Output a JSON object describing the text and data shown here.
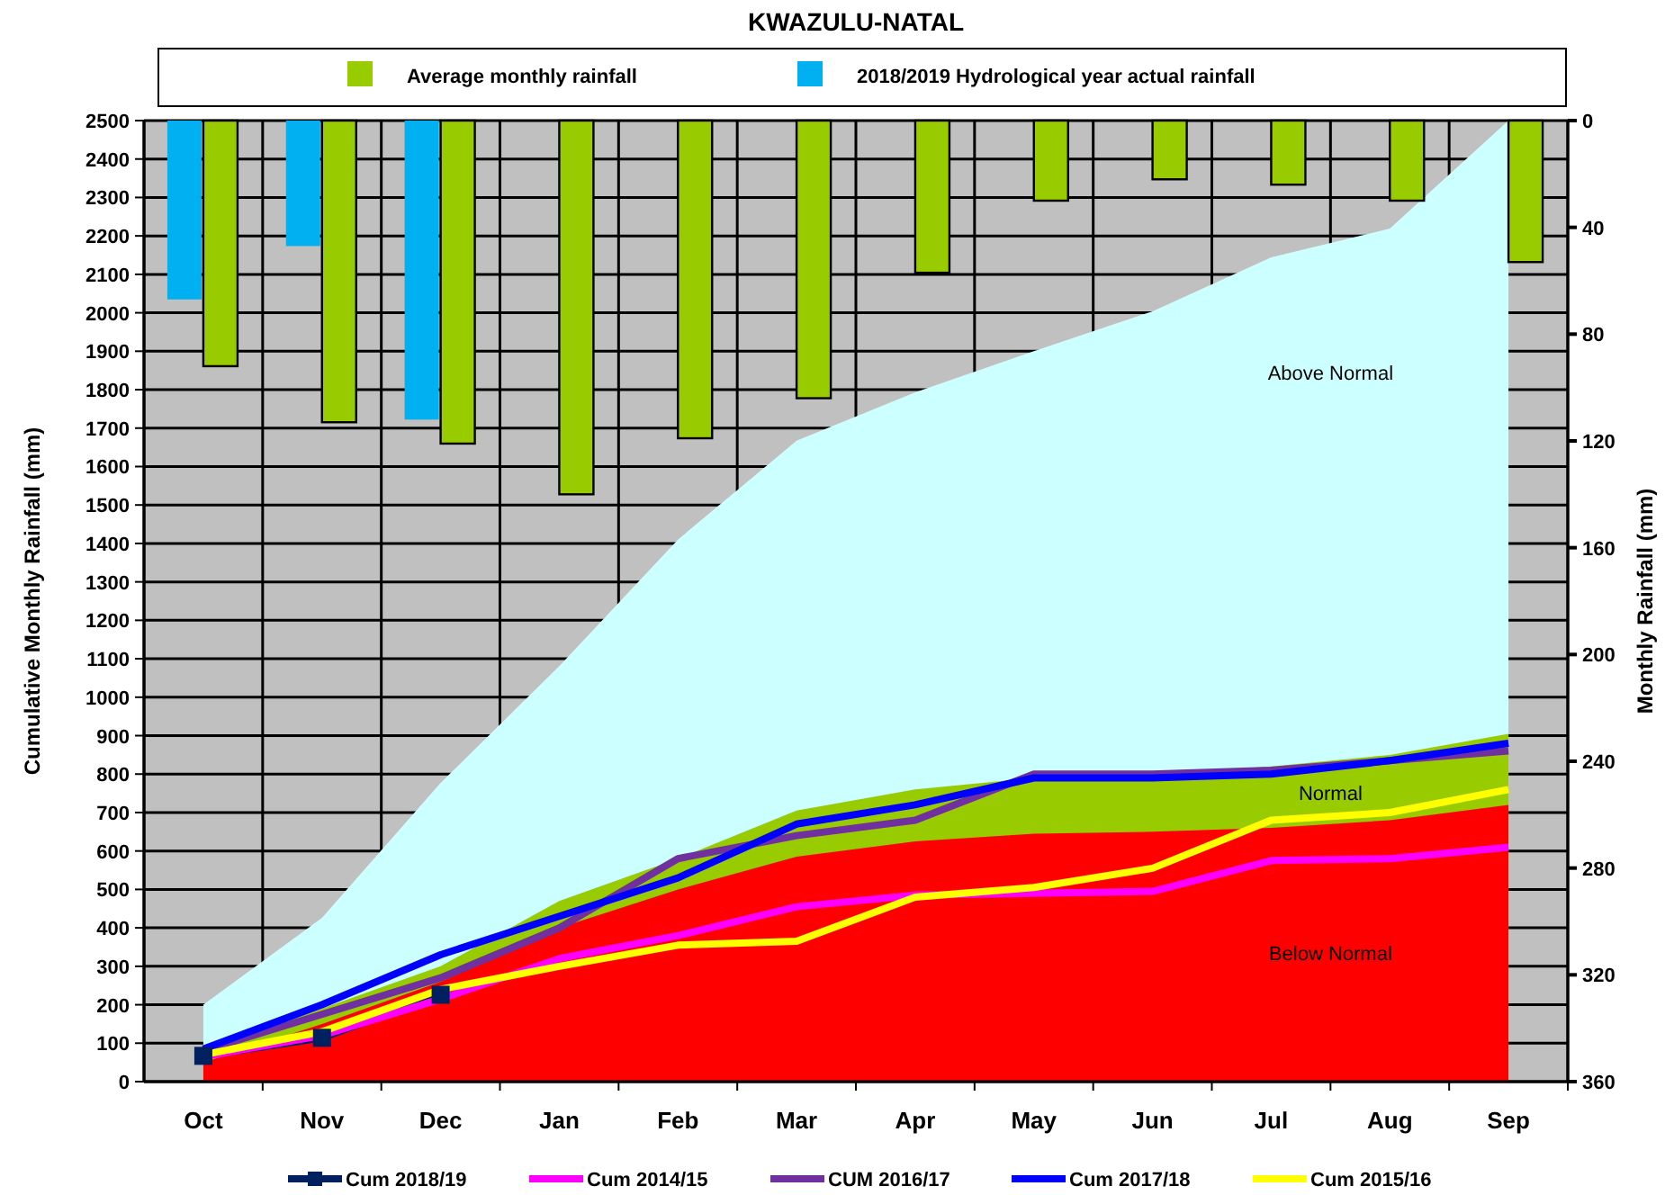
{
  "chart_data": {
    "type": "area",
    "title": "KWAZULU-NATAL",
    "ylabel": "Cumulative Monthly Rainfall (mm)",
    "y2label": "Monthly Rainfall (mm)",
    "categories": [
      "Oct",
      "Nov",
      "Dec",
      "Jan",
      "Feb",
      "Mar",
      "Apr",
      "May",
      "Jun",
      "Jul",
      "Aug",
      "Sep"
    ],
    "grid": true,
    "legend": "bottom",
    "ylim": [
      0,
      2500
    ],
    "yticks": [
      0,
      100,
      200,
      300,
      400,
      500,
      600,
      700,
      800,
      900,
      1000,
      1100,
      1200,
      1300,
      1400,
      1500,
      1600,
      1700,
      1800,
      1900,
      2000,
      2100,
      2200,
      2300,
      2400,
      2500
    ],
    "y2lim": [
      360,
      0
    ],
    "y2ticks": [
      0,
      40,
      80,
      120,
      160,
      200,
      240,
      280,
      320,
      360
    ],
    "series": [
      {
        "name": "Above Normal",
        "color": "#ccffff",
        "values": [
          200,
          426,
          777,
          1081,
          1410,
          1667,
          1793,
          1900,
          2004,
          2144,
          2219,
          2500
        ]
      },
      {
        "name": "Normal",
        "color": "#99cc00",
        "values": [
          80,
          190,
          300,
          470,
          580,
          705,
          760,
          790,
          800,
          820,
          850,
          905
        ]
      },
      {
        "name": "Below Normal",
        "color": "#ff0000",
        "values": [
          50,
          150,
          260,
          400,
          500,
          585,
          625,
          645,
          650,
          660,
          680,
          720
        ]
      },
      {
        "name": "2018/2019 Hydrological year actual rainfall",
        "type": "bar",
        "axis": "y2",
        "color": "#00b0f0",
        "values": [
          67,
          47,
          112,
          null,
          null,
          null,
          null,
          null,
          null,
          null,
          null,
          null
        ]
      },
      {
        "name": "Average monthly rainfall",
        "type": "bar",
        "axis": "y2",
        "color": "#99cc00",
        "values": [
          92,
          113,
          121,
          140,
          119,
          104,
          57,
          30,
          22,
          24,
          30,
          53
        ]
      },
      {
        "name": "Cum 2018/19",
        "type": "line",
        "marker": "square",
        "color": "#002060",
        "values": [
          67,
          114,
          226,
          null,
          null,
          null,
          null,
          null,
          null,
          null,
          null,
          null
        ]
      },
      {
        "name": "Cum 2014/15",
        "type": "line",
        "color": "#ff00ff",
        "values": [
          65,
          120,
          215,
          320,
          380,
          455,
          485,
          490,
          495,
          575,
          580,
          610
        ]
      },
      {
        "name": "CUM  2016/17",
        "type": "line",
        "color": "#7030a0",
        "values": [
          80,
          175,
          270,
          400,
          580,
          640,
          680,
          800,
          800,
          810,
          835,
          860
        ]
      },
      {
        "name": "Cum 2017/18",
        "type": "line",
        "color": "#0000ff",
        "values": [
          85,
          200,
          330,
          430,
          530,
          670,
          720,
          790,
          790,
          800,
          835,
          880
        ]
      },
      {
        "name": "Cum 2015/16",
        "type": "line",
        "color": "#ffff00",
        "values": [
          70,
          130,
          240,
          300,
          355,
          365,
          480,
          505,
          555,
          680,
          700,
          760
        ]
      }
    ]
  }
}
